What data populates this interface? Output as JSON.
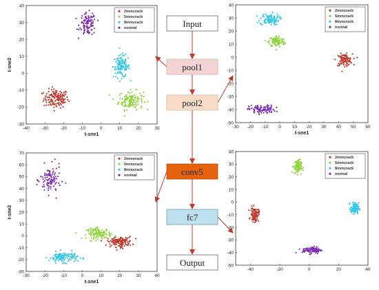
{
  "colors": {
    "2mmcrack": "#c0392b",
    "5mmcrack": "#8fd43a",
    "8mmcrack": "#32c8e8",
    "normal": "#7b2bb5",
    "arrow": "#c0392b",
    "node_default_fill": "#ffffff",
    "node_pool_fill": "#f2d4d4",
    "node_pool2_fill": "#f8dcc8",
    "node_conv_fill": "#e5620e",
    "node_fc_fill": "#bfe0ee"
  },
  "legend": [
    "2mmcrack",
    "5mmcrack",
    "8mmcrack",
    "normal"
  ],
  "pipeline": [
    {
      "id": "input",
      "label": "Input"
    },
    {
      "id": "pool1",
      "label": "pool1"
    },
    {
      "id": "pool2",
      "label": "pool2"
    },
    {
      "id": "conv5",
      "label": "conv5"
    },
    {
      "id": "fc7",
      "label": "fc7"
    },
    {
      "id": "output",
      "label": "Output"
    }
  ],
  "chart_data": [
    {
      "type": "scatter",
      "source_layer": "pool1",
      "xlabel": "t-sne1",
      "ylabel": "t-sne2",
      "xlim": [
        -40,
        30
      ],
      "ylim": [
        -30,
        40
      ],
      "xticks": [
        -40,
        -30,
        -20,
        -10,
        0,
        10,
        20,
        30
      ],
      "yticks": [
        -30,
        -20,
        -10,
        0,
        10,
        20,
        30,
        40
      ],
      "legend_position": "top-right",
      "series": [
        {
          "name": "2mmcrack",
          "center": [
            -24,
            -15
          ],
          "spread": [
            6,
            5
          ],
          "count": 140
        },
        {
          "name": "5mmcrack",
          "center": [
            16,
            -16
          ],
          "spread": [
            6,
            5
          ],
          "count": 130
        },
        {
          "name": "8mmcrack",
          "center": [
            11,
            4
          ],
          "spread": [
            4,
            6
          ],
          "count": 120
        },
        {
          "name": "normal",
          "center": [
            -7,
            29
          ],
          "spread": [
            4,
            6
          ],
          "count": 100
        }
      ]
    },
    {
      "type": "scatter",
      "source_layer": "pool2",
      "xlabel": "t-sne1",
      "ylabel": "",
      "xlim": [
        -30,
        60
      ],
      "ylim": [
        -50,
        40
      ],
      "xticks": [
        -30,
        -20,
        -10,
        0,
        10,
        20,
        30,
        40,
        50,
        60
      ],
      "yticks": [
        -50,
        -40,
        -30,
        -20,
        -10,
        0,
        10,
        20,
        30,
        40
      ],
      "legend_position": "top-right",
      "series": [
        {
          "name": "2mmcrack",
          "center": [
            44,
            -2
          ],
          "spread": [
            5,
            4
          ],
          "count": 100
        },
        {
          "name": "5mmcrack",
          "center": [
            -2,
            12
          ],
          "spread": [
            5,
            4
          ],
          "count": 100
        },
        {
          "name": "8mmcrack",
          "center": [
            -7,
            29
          ],
          "spread": [
            6,
            4
          ],
          "count": 100
        },
        {
          "name": "normal",
          "center": [
            -12,
            -40
          ],
          "spread": [
            8,
            3
          ],
          "count": 100
        }
      ]
    },
    {
      "type": "scatter",
      "source_layer": "conv5",
      "xlabel": "t-sne1",
      "ylabel": "t-sne2",
      "xlim": [
        -30,
        40
      ],
      "ylim": [
        -30,
        70
      ],
      "xticks": [
        -30,
        -20,
        -10,
        0,
        10,
        20,
        30,
        40
      ],
      "yticks": [
        -30,
        -20,
        -10,
        0,
        10,
        20,
        30,
        40,
        50,
        60,
        70
      ],
      "legend_position": "top-right",
      "series": [
        {
          "name": "2mmcrack",
          "center": [
            20,
            -5
          ],
          "spread": [
            6,
            4
          ],
          "count": 130
        },
        {
          "name": "5mmcrack",
          "center": [
            9,
            2
          ],
          "spread": [
            6,
            4
          ],
          "count": 120
        },
        {
          "name": "8mmcrack",
          "center": [
            -10,
            -18
          ],
          "spread": [
            7,
            4
          ],
          "count": 120
        },
        {
          "name": "normal",
          "center": [
            -17,
            47
          ],
          "spread": [
            5,
            11
          ],
          "count": 100
        }
      ]
    },
    {
      "type": "scatter",
      "source_layer": "fc7",
      "xlabel": "",
      "ylabel": "",
      "xlim": [
        -50,
        40
      ],
      "ylim": [
        -50,
        40
      ],
      "xticks": [
        -40,
        -20,
        0,
        20,
        40
      ],
      "yticks": [
        -50,
        -40,
        -30,
        -20,
        -10,
        0,
        10,
        20,
        30,
        40
      ],
      "legend_position": "top-right",
      "series": [
        {
          "name": "2mmcrack",
          "center": [
            -37,
            -10
          ],
          "spread": [
            2.5,
            5
          ],
          "count": 90
        },
        {
          "name": "5mmcrack",
          "center": [
            -8,
            28
          ],
          "spread": [
            2.5,
            5
          ],
          "count": 90
        },
        {
          "name": "8mmcrack",
          "center": [
            31,
            -5
          ],
          "spread": [
            2.5,
            4
          ],
          "count": 90
        },
        {
          "name": "normal",
          "center": [
            2,
            -38
          ],
          "spread": [
            6,
            2.5
          ],
          "count": 90
        }
      ]
    }
  ]
}
